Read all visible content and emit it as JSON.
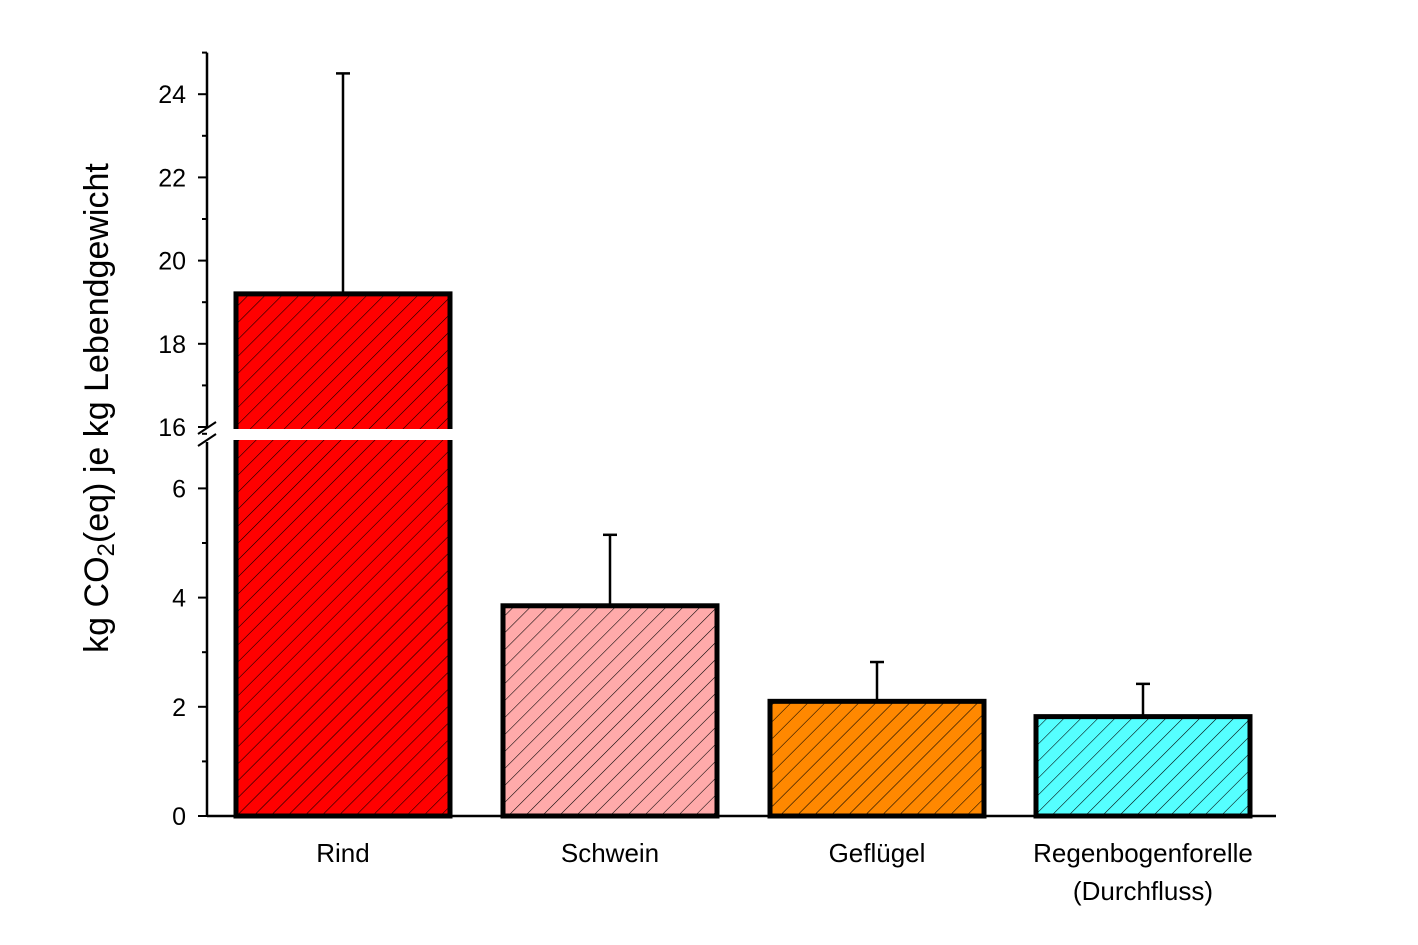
{
  "chart_data": {
    "type": "bar",
    "categories": [
      "Rind",
      "Schwein",
      "Geflügel",
      "Regenbogenforelle (Durchfluss)"
    ],
    "category_lines": [
      [
        "Rind"
      ],
      [
        "Schwein"
      ],
      [
        "Geflügel"
      ],
      [
        "Regenbogenforelle",
        "(Durchfluss)"
      ]
    ],
    "values": [
      19.2,
      3.85,
      2.1,
      1.82
    ],
    "error_plus": [
      5.3,
      1.3,
      0.72,
      0.6
    ],
    "colors": [
      "#ff0000",
      "#ffaaaa",
      "#ff8800",
      "#55ffff"
    ],
    "ylabel_parts": {
      "pre": "kg CO",
      "sub": "2",
      "post": "(eq) je kg Lebendgewicht"
    },
    "y_axis_break": {
      "lower_range": [
        0,
        7
      ],
      "upper_range": [
        16,
        25
      ]
    },
    "y_ticks_lower": [
      0,
      2,
      4,
      6
    ],
    "y_ticks_upper": [
      16,
      18,
      20,
      22,
      24
    ],
    "pattern": "diagonal-hatch",
    "grid": false
  }
}
